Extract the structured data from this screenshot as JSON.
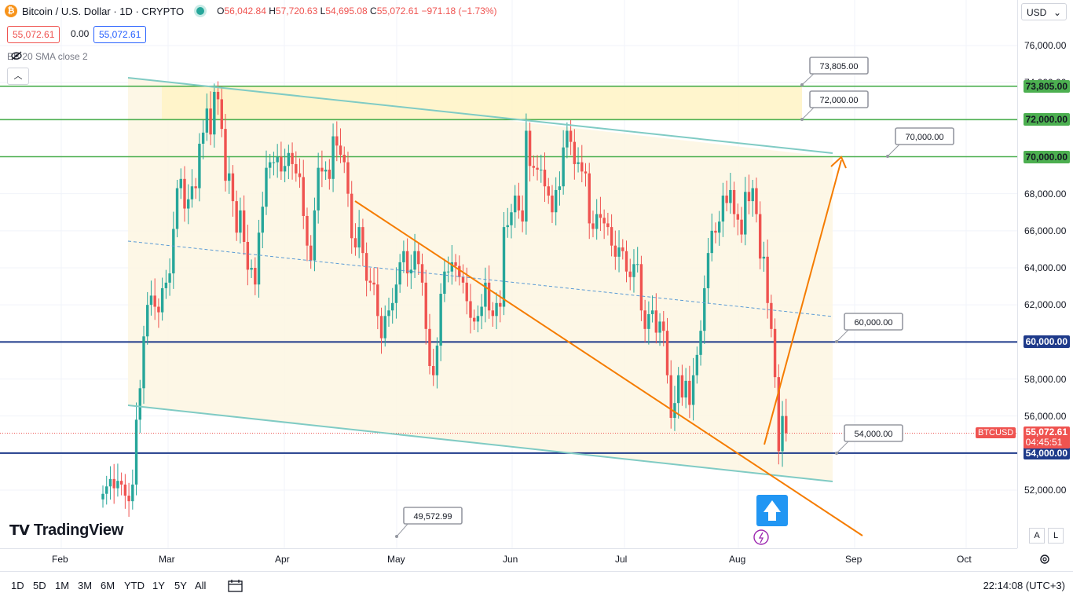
{
  "header": {
    "symbol_title": "Bitcoin / U.S. Dollar · 1D · CRYPTO",
    "icon": "bitcoin-icon",
    "open_label": "O",
    "open": "56,042.84",
    "high_label": "H",
    "high": "57,720.63",
    "low_label": "L",
    "low": "54,695.08",
    "close_label": "C",
    "close": "55,072.61",
    "change": "−971.18 (−1.73%)",
    "bid": "55,072.61",
    "spread": "0.00",
    "ask": "55,072.61"
  },
  "indicator": {
    "label": "BB 20 SMA close 2",
    "icon": "eye-off-icon"
  },
  "collapse_icon": "chevron-up-icon",
  "logo": {
    "text": "TradingView",
    "icon": "tradingview-logo-icon"
  },
  "currency": "USD",
  "colors": {
    "up": "#26a69a",
    "down": "#ef5350",
    "support": "#1e3a8a",
    "resistance": "#4caf50",
    "trend": "#f57c00",
    "channel": "#80cbc4",
    "zone": "#fff3c4",
    "channel_fill": "#fdf6e3"
  },
  "chart_data": {
    "type": "candlestick",
    "symbol": "BTCUSD",
    "timeframe": "1D",
    "y_ticks": [
      "76,000.00",
      "74,000.00",
      "72,000.00",
      "70,000.00",
      "68,000.00",
      "66,000.00",
      "64,000.00",
      "62,000.00",
      "60,000.00",
      "58,000.00",
      "56,000.00",
      "54,000.00",
      "52,000.00"
    ],
    "x_ticks": [
      "Feb",
      "Mar",
      "Apr",
      "May",
      "Jun",
      "Jul",
      "Aug",
      "Sep",
      "Oct"
    ],
    "ylim": [
      48900,
      77800
    ],
    "horizontal_levels": [
      {
        "value": 73805,
        "label": "73,805.00",
        "kind": "resistance"
      },
      {
        "value": 72000,
        "label": "72,000.00",
        "kind": "resistance"
      },
      {
        "value": 70000,
        "label": "70,000.00",
        "kind": "resistance"
      },
      {
        "value": 60000,
        "label": "60,000.00",
        "kind": "support"
      },
      {
        "value": 54000,
        "label": "54,000.00",
        "kind": "support"
      }
    ],
    "callouts": [
      "73,805.00",
      "72,000.00",
      "70,000.00",
      "60,000.00",
      "54,000.00",
      "49,572.99"
    ],
    "last_price": {
      "symbol": "BTCUSD",
      "value": "55,072.61",
      "countdown": "04:45:51"
    },
    "closes": [
      51800,
      52200,
      52600,
      52100,
      52500,
      52300,
      51700,
      51400,
      52300,
      55800,
      57500,
      60300,
      62000,
      62500,
      61900,
      61600,
      62900,
      63200,
      63700,
      66100,
      68300,
      68800,
      67200,
      67700,
      68400,
      68300,
      70700,
      71300,
      72600,
      71200,
      73500,
      73100,
      71500,
      68700,
      69100,
      67600,
      65900,
      67100,
      65400,
      63900,
      64000,
      63100,
      65900,
      67300,
      69400,
      69700,
      69700,
      70000,
      69200,
      69500,
      70200,
      69600,
      69100,
      68900,
      66800,
      65200,
      64400,
      67100,
      69400,
      69200,
      69300,
      68800,
      71100,
      70600,
      70100,
      69700,
      68000,
      65600,
      65100,
      66200,
      64800,
      63300,
      63200,
      63100,
      61400,
      60200,
      61400,
      61700,
      62100,
      63100,
      64300,
      64900,
      63700,
      63900,
      64900,
      64200,
      63200,
      60700,
      58700,
      58200,
      59800,
      62600,
      63800,
      63800,
      64300,
      64100,
      63500,
      63200,
      62200,
      61300,
      61100,
      61400,
      61900,
      63200,
      61700,
      61400,
      62100,
      61900,
      66200,
      66300,
      67000,
      67900,
      67100,
      66500,
      71400,
      69500,
      69400,
      69300,
      69300,
      68400,
      67900,
      67000,
      68200,
      68400,
      70500,
      71400,
      70800,
      69600,
      69700,
      69200,
      69100,
      66400,
      66100,
      66900,
      66700,
      66400,
      66200,
      65200,
      64600,
      65100,
      64900,
      63800,
      63500,
      64200,
      64200,
      61700,
      60700,
      61500,
      61700,
      60500,
      61100,
      60600,
      58200,
      55900,
      56700,
      58200,
      57000,
      57900,
      56600,
      58200,
      59300,
      60600,
      62900,
      64800,
      66000,
      65900,
      66500,
      67900,
      67500,
      68200,
      66900,
      66600,
      65800,
      68100,
      67600,
      68300,
      66900,
      64500,
      64600,
      62100,
      60700,
      58100,
      54100,
      56000,
      55072
    ]
  },
  "time_frames": [
    "1D",
    "5D",
    "1M",
    "3M",
    "6M",
    "YTD",
    "1Y",
    "5Y",
    "All"
  ],
  "bottom": {
    "compare_icon": "calendar-range-icon",
    "clock": "22:14:08 (UTC+3)"
  },
  "scale_buttons": {
    "auto": "A",
    "log": "L",
    "settings_icon": "gear-icon"
  },
  "misc_icons": {
    "event_marker": "lightning-icon",
    "arrow_up": "arrow-up-icon"
  }
}
